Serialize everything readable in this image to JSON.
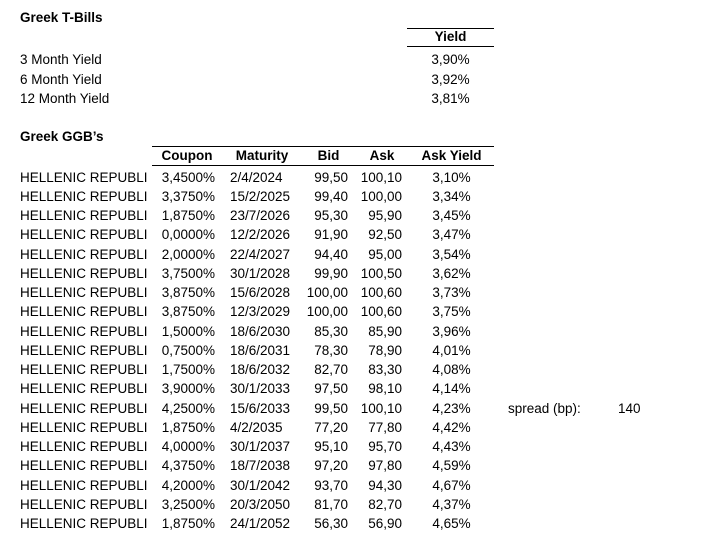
{
  "page": {
    "background": "#ffffff",
    "text_color": "#000000",
    "border_color": "#000000"
  },
  "tbills": {
    "title": "Greek T-Bills",
    "yield_header": "Yield",
    "rows": [
      {
        "label": "3 Month Yield",
        "value": "3,90%"
      },
      {
        "label": "6 Month Yield",
        "value": "3,92%"
      },
      {
        "label": "12 Month Yield",
        "value": "3,81%"
      }
    ]
  },
  "ggbs": {
    "title": "Greek GGB’s",
    "columns": [
      "Coupon",
      "Maturity",
      "Bid",
      "Ask",
      "Ask Yield"
    ],
    "rows": [
      {
        "name": "HELLENIC REPUBLI",
        "coupon": "3,4500%",
        "maturity": "2/4/2024",
        "bid": "99,50",
        "ask": "100,10",
        "ask_yield": "3,10%"
      },
      {
        "name": "HELLENIC REPUBLI",
        "coupon": "3,3750%",
        "maturity": "15/2/2025",
        "bid": "99,40",
        "ask": "100,00",
        "ask_yield": "3,34%"
      },
      {
        "name": "HELLENIC REPUBLI",
        "coupon": "1,8750%",
        "maturity": "23/7/2026",
        "bid": "95,30",
        "ask": "95,90",
        "ask_yield": "3,45%"
      },
      {
        "name": "HELLENIC REPUBLI",
        "coupon": "0,0000%",
        "maturity": "12/2/2026",
        "bid": "91,90",
        "ask": "92,50",
        "ask_yield": "3,47%"
      },
      {
        "name": "HELLENIC REPUBLI",
        "coupon": "2,0000%",
        "maturity": "22/4/2027",
        "bid": "94,40",
        "ask": "95,00",
        "ask_yield": "3,54%"
      },
      {
        "name": "HELLENIC REPUBLI",
        "coupon": "3,7500%",
        "maturity": "30/1/2028",
        "bid": "99,90",
        "ask": "100,50",
        "ask_yield": "3,62%"
      },
      {
        "name": "HELLENIC REPUBLI",
        "coupon": "3,8750%",
        "maturity": "15/6/2028",
        "bid": "100,00",
        "ask": "100,60",
        "ask_yield": "3,73%"
      },
      {
        "name": "HELLENIC REPUBLI",
        "coupon": "3,8750%",
        "maturity": "12/3/2029",
        "bid": "100,00",
        "ask": "100,60",
        "ask_yield": "3,75%"
      },
      {
        "name": "HELLENIC REPUBLI",
        "coupon": "1,5000%",
        "maturity": "18/6/2030",
        "bid": "85,30",
        "ask": "85,90",
        "ask_yield": "3,96%"
      },
      {
        "name": "HELLENIC REPUBLI",
        "coupon": "0,7500%",
        "maturity": "18/6/2031",
        "bid": "78,30",
        "ask": "78,90",
        "ask_yield": "4,01%"
      },
      {
        "name": "HELLENIC REPUBLI",
        "coupon": "1,7500%",
        "maturity": "18/6/2032",
        "bid": "82,70",
        "ask": "83,30",
        "ask_yield": "4,08%"
      },
      {
        "name": "HELLENIC REPUBLI",
        "coupon": "3,9000%",
        "maturity": "30/1/2033",
        "bid": "97,50",
        "ask": "98,10",
        "ask_yield": "4,14%"
      },
      {
        "name": "HELLENIC REPUBLI",
        "coupon": "4,2500%",
        "maturity": "15/6/2033",
        "bid": "99,50",
        "ask": "100,10",
        "ask_yield": "4,23%"
      },
      {
        "name": "HELLENIC REPUBLI",
        "coupon": "1,8750%",
        "maturity": "4/2/2035",
        "bid": "77,20",
        "ask": "77,80",
        "ask_yield": "4,42%"
      },
      {
        "name": "HELLENIC REPUBLI",
        "coupon": "4,0000%",
        "maturity": "30/1/2037",
        "bid": "95,10",
        "ask": "95,70",
        "ask_yield": "4,43%"
      },
      {
        "name": "HELLENIC REPUBLI",
        "coupon": "4,3750%",
        "maturity": "18/7/2038",
        "bid": "97,20",
        "ask": "97,80",
        "ask_yield": "4,59%"
      },
      {
        "name": "HELLENIC REPUBLI",
        "coupon": "4,2000%",
        "maturity": "30/1/2042",
        "bid": "93,70",
        "ask": "94,30",
        "ask_yield": "4,67%"
      },
      {
        "name": "HELLENIC REPUBLI",
        "coupon": "3,2500%",
        "maturity": "20/3/2050",
        "bid": "81,70",
        "ask": "82,70",
        "ask_yield": "4,37%"
      },
      {
        "name": "HELLENIC REPUBLI",
        "coupon": "1,8750%",
        "maturity": "24/1/2052",
        "bid": "56,30",
        "ask": "56,90",
        "ask_yield": "4,65%"
      }
    ]
  },
  "spread": {
    "label": "spread (bp):",
    "value": "140"
  }
}
